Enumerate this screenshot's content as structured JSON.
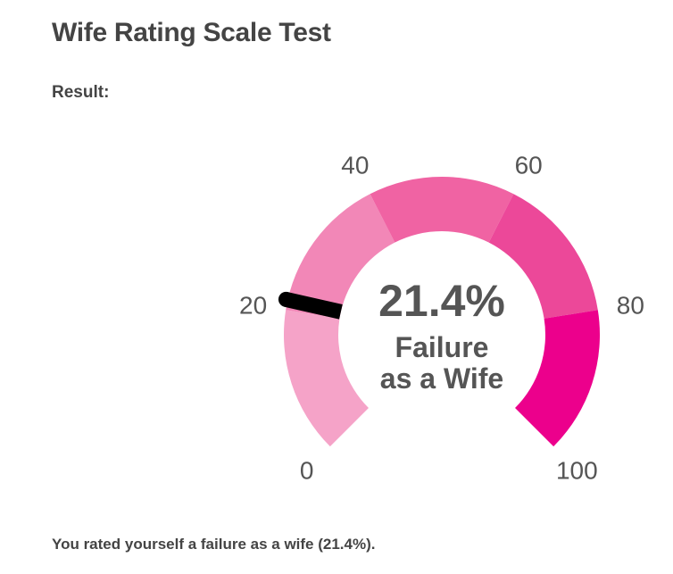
{
  "page": {
    "title": "Wife Rating Scale Test",
    "result_label": "Result:",
    "summary": "You rated yourself a failure as a wife (21.4%)."
  },
  "chart_data": {
    "type": "gauge",
    "range": [
      0,
      100
    ],
    "value": 21.4,
    "value_text": "21.4%",
    "label_lines": [
      "Failure",
      "as a Wife"
    ],
    "tick_labels": [
      "0",
      "20",
      "40",
      "60",
      "80",
      "100"
    ],
    "ticks": [
      0,
      20,
      40,
      60,
      80,
      100
    ],
    "bands": [
      {
        "from": 0,
        "to": 20,
        "color": "#f5a3c8"
      },
      {
        "from": 20,
        "to": 40,
        "color": "#f287b7"
      },
      {
        "from": 40,
        "to": 60,
        "color": "#f063a3"
      },
      {
        "from": 60,
        "to": 80,
        "color": "#ec4899"
      },
      {
        "from": 80,
        "to": 100,
        "color": "#ec008c"
      }
    ],
    "needle_color": "#000000"
  }
}
